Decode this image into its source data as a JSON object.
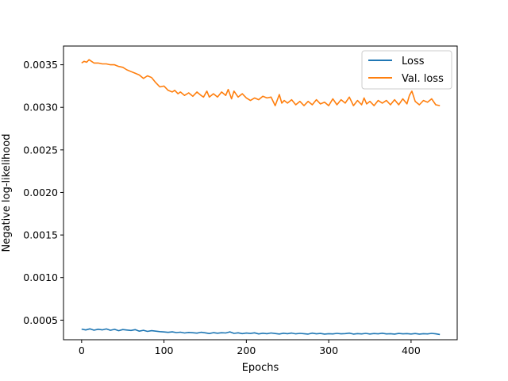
{
  "chart_data": {
    "type": "line",
    "title": "",
    "xlabel": "Epochs",
    "ylabel": "Negative log-likelihood",
    "xlim": [
      -22,
      456
    ],
    "ylim": [
      0.00027,
      0.00372
    ],
    "xticks": [
      0,
      100,
      200,
      300,
      400
    ],
    "xtick_labels": [
      "0",
      "100",
      "200",
      "300",
      "400"
    ],
    "yticks": [
      0.0005,
      0.001,
      0.0015,
      0.002,
      0.0025,
      0.003,
      0.0035
    ],
    "ytick_labels": [
      "0.0005",
      "0.0010",
      "0.0015",
      "0.0020",
      "0.0025",
      "0.0030",
      "0.0035"
    ],
    "grid": false,
    "legend_position": "top-right",
    "series": [
      {
        "name": "Loss",
        "color": "#1f77b4",
        "x": [
          0,
          5,
          10,
          15,
          20,
          25,
          30,
          35,
          40,
          45,
          50,
          55,
          60,
          65,
          70,
          75,
          80,
          85,
          90,
          95,
          100,
          105,
          110,
          115,
          120,
          125,
          130,
          135,
          140,
          145,
          150,
          155,
          160,
          165,
          170,
          175,
          180,
          185,
          190,
          195,
          200,
          205,
          210,
          215,
          220,
          225,
          230,
          235,
          240,
          245,
          250,
          255,
          260,
          265,
          270,
          275,
          280,
          285,
          290,
          295,
          300,
          305,
          310,
          315,
          320,
          325,
          330,
          335,
          340,
          345,
          350,
          355,
          360,
          365,
          370,
          375,
          380,
          385,
          390,
          395,
          400,
          405,
          410,
          415,
          420,
          425,
          430,
          435
        ],
        "values": [
          0.000395,
          0.000385,
          0.000398,
          0.000382,
          0.000393,
          0.000386,
          0.000397,
          0.000381,
          0.000392,
          0.000376,
          0.000389,
          0.000384,
          0.000379,
          0.000388,
          0.000371,
          0.000381,
          0.000368,
          0.000376,
          0.000371,
          0.000365,
          0.000361,
          0.000357,
          0.000362,
          0.000354,
          0.000359,
          0.000349,
          0.000356,
          0.000352,
          0.000347,
          0.000358,
          0.000351,
          0.000343,
          0.000353,
          0.000346,
          0.000352,
          0.000349,
          0.000362,
          0.000345,
          0.000351,
          0.000342,
          0.000348,
          0.000344,
          0.000351,
          0.000338,
          0.000346,
          0.000341,
          0.000349,
          0.000343,
          0.000337,
          0.000346,
          0.000341,
          0.000348,
          0.000339,
          0.000345,
          0.000341,
          0.000336,
          0.000347,
          0.000339,
          0.000344,
          0.000336,
          0.000341,
          0.000338,
          0.000345,
          0.000339,
          0.000342,
          0.000347,
          0.000336,
          0.000342,
          0.000338,
          0.000345,
          0.000337,
          0.000343,
          0.000339,
          0.000346,
          0.000338,
          0.000341,
          0.000336,
          0.000344,
          0.000339,
          0.000342,
          0.000337,
          0.000343,
          0.000336,
          0.000341,
          0.000338,
          0.000345,
          0.000339,
          0.000332
        ]
      },
      {
        "name": "Val. loss",
        "color": "#ff7f0e",
        "x": [
          0,
          3,
          6,
          9,
          12,
          15,
          20,
          25,
          30,
          35,
          40,
          45,
          50,
          55,
          60,
          65,
          70,
          75,
          80,
          85,
          90,
          95,
          100,
          105,
          110,
          113,
          117,
          120,
          125,
          130,
          135,
          140,
          145,
          148,
          152,
          155,
          160,
          165,
          170,
          175,
          178,
          182,
          185,
          190,
          195,
          200,
          205,
          210,
          215,
          220,
          225,
          230,
          235,
          240,
          243,
          246,
          250,
          255,
          260,
          265,
          270,
          275,
          280,
          285,
          290,
          295,
          300,
          305,
          310,
          315,
          320,
          325,
          330,
          335,
          340,
          343,
          346,
          350,
          355,
          360,
          365,
          370,
          375,
          380,
          385,
          390,
          395,
          398,
          401,
          405,
          410,
          415,
          420,
          425,
          430,
          435
        ],
        "values": [
          0.00352,
          0.00354,
          0.00353,
          0.00356,
          0.00354,
          0.00352,
          0.00352,
          0.00351,
          0.00351,
          0.0035,
          0.0035,
          0.00348,
          0.00347,
          0.00344,
          0.00342,
          0.0034,
          0.00338,
          0.00334,
          0.00337,
          0.00335,
          0.00329,
          0.00324,
          0.00325,
          0.0032,
          0.00318,
          0.0032,
          0.00316,
          0.00318,
          0.00314,
          0.00317,
          0.00313,
          0.00318,
          0.00314,
          0.00312,
          0.00319,
          0.00312,
          0.00316,
          0.00312,
          0.00318,
          0.00314,
          0.00321,
          0.0031,
          0.00319,
          0.00312,
          0.00316,
          0.00311,
          0.00308,
          0.00311,
          0.00309,
          0.00313,
          0.00311,
          0.00312,
          0.00302,
          0.00315,
          0.00305,
          0.00308,
          0.00305,
          0.00309,
          0.00303,
          0.00307,
          0.00302,
          0.00307,
          0.00303,
          0.00309,
          0.00304,
          0.00306,
          0.00302,
          0.0031,
          0.00303,
          0.00309,
          0.00305,
          0.00312,
          0.00302,
          0.00308,
          0.00303,
          0.00311,
          0.00304,
          0.00307,
          0.00302,
          0.00308,
          0.00305,
          0.00308,
          0.00303,
          0.00309,
          0.00303,
          0.0031,
          0.00304,
          0.00314,
          0.00319,
          0.00307,
          0.00303,
          0.00308,
          0.00306,
          0.0031,
          0.00303,
          0.00302
        ]
      }
    ]
  }
}
